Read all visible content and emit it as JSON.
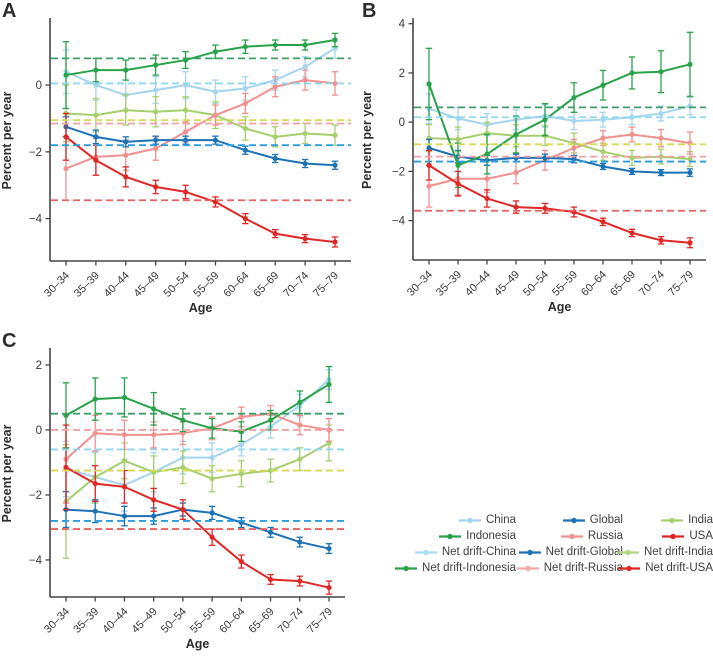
{
  "figure_name": "Percent per year by age for six populations with net drift reference lines",
  "chart_data": [
    {
      "type": "line",
      "panel_label": "A",
      "xlabel": "Age",
      "ylabel": "Percent per year",
      "categories": [
        "30–34",
        "35–39",
        "40–44",
        "45–49",
        "50–54",
        "55–59",
        "60–64",
        "65–69",
        "70–74",
        "75–79"
      ],
      "ylim": [
        -5.27,
        1.95
      ],
      "yticks": [
        0,
        -2,
        -4
      ],
      "yticklabels": [
        "0",
        "−2",
        "−4"
      ],
      "grid": false,
      "series": [
        {
          "name": "China",
          "color": "#a4d4ee",
          "values": [
            0.4,
            0.0,
            -0.3,
            -0.15,
            0.0,
            -0.2,
            -0.1,
            0.15,
            0.55,
            1.1
          ],
          "err": [
            0.65,
            0.45,
            0.45,
            0.4,
            0.4,
            0.35,
            0.35,
            0.3,
            0.3,
            0.3
          ]
        },
        {
          "name": "Global",
          "color": "#1d72b6",
          "values": [
            -1.25,
            -1.55,
            -1.7,
            -1.65,
            -1.65,
            -1.65,
            -1.95,
            -2.2,
            -2.35,
            -2.4
          ],
          "err": [
            0.3,
            0.2,
            0.15,
            0.12,
            0.12,
            0.12,
            0.12,
            0.12,
            0.12,
            0.12
          ]
        },
        {
          "name": "India",
          "color": "#a6cf6e",
          "values": [
            -0.85,
            -0.9,
            -0.75,
            -0.8,
            -0.75,
            -0.9,
            -1.3,
            -1.55,
            -1.45,
            -1.5
          ],
          "err": [
            0.85,
            0.5,
            0.45,
            0.45,
            0.4,
            0.4,
            0.35,
            0.3,
            0.3,
            0.3
          ]
        },
        {
          "name": "Indonesia",
          "color": "#28a349",
          "values": [
            0.3,
            0.45,
            0.45,
            0.6,
            0.75,
            1.0,
            1.15,
            1.2,
            1.2,
            1.35
          ],
          "err": [
            1.0,
            0.35,
            0.3,
            0.3,
            0.25,
            0.2,
            0.2,
            0.15,
            0.15,
            0.2
          ]
        },
        {
          "name": "Russia",
          "color": "#f0908f",
          "values": [
            -2.5,
            -2.15,
            -2.1,
            -1.9,
            -1.4,
            -0.9,
            -0.55,
            -0.05,
            0.15,
            0.05
          ],
          "err": [
            0.95,
            0.55,
            0.45,
            0.35,
            0.3,
            0.3,
            0.3,
            0.3,
            0.3,
            0.35
          ]
        },
        {
          "name": "USA",
          "color": "#e12726",
          "values": [
            -1.55,
            -2.25,
            -2.75,
            -3.05,
            -3.2,
            -3.5,
            -4.0,
            -4.45,
            -4.6,
            -4.7
          ],
          "err": [
            0.7,
            0.45,
            0.3,
            0.2,
            0.2,
            0.15,
            0.15,
            0.12,
            0.12,
            0.15
          ]
        }
      ],
      "net_drift": [
        {
          "name": "Net drift-China",
          "color": "#90d8f2",
          "value": 0.05
        },
        {
          "name": "Net drift-Global",
          "color": "#2d9de2",
          "value": -1.8
        },
        {
          "name": "Net drift-India",
          "color": "#d6da55",
          "value": -1.05
        },
        {
          "name": "Net drift-Indonesia",
          "color": "#3d9f63",
          "value": 0.8
        },
        {
          "name": "Net drift-Russia",
          "color": "#f2a2a6",
          "value": -1.15
        },
        {
          "name": "Net drift-USA",
          "color": "#e8605f",
          "value": -3.45
        }
      ]
    },
    {
      "type": "line",
      "panel_label": "B",
      "xlabel": "Age",
      "ylabel": "Percent per year",
      "categories": [
        "30–34",
        "35–39",
        "40–44",
        "45–49",
        "50–54",
        "55–59",
        "60–64",
        "65–69",
        "70–74",
        "75–79"
      ],
      "ylim": [
        -5.6,
        4.15
      ],
      "yticks": [
        4,
        2,
        0,
        -2,
        -4
      ],
      "yticklabels": [
        "4",
        "2",
        "0",
        "−2",
        "−4"
      ],
      "grid": false,
      "series": [
        {
          "name": "China",
          "color": "#a4d4ee",
          "values": [
            0.55,
            0.15,
            -0.1,
            0.1,
            0.25,
            0.05,
            0.1,
            0.2,
            0.35,
            0.65
          ],
          "err": [
            0.6,
            0.45,
            0.45,
            0.4,
            0.45,
            0.35,
            0.3,
            0.3,
            0.3,
            0.35
          ]
        },
        {
          "name": "Global",
          "color": "#1d72b6",
          "values": [
            -1.05,
            -1.4,
            -1.55,
            -1.45,
            -1.45,
            -1.5,
            -1.8,
            -2.0,
            -2.05,
            -2.05
          ],
          "err": [
            0.35,
            0.25,
            0.2,
            0.15,
            0.15,
            0.15,
            0.12,
            0.12,
            0.12,
            0.15
          ]
        },
        {
          "name": "India",
          "color": "#a6cf6e",
          "values": [
            -0.65,
            -0.7,
            -0.45,
            -0.55,
            -0.55,
            -0.85,
            -1.2,
            -1.45,
            -1.4,
            -1.5
          ],
          "err": [
            0.55,
            0.5,
            0.45,
            0.45,
            0.4,
            0.4,
            0.35,
            0.3,
            0.3,
            0.3
          ]
        },
        {
          "name": "Indonesia",
          "color": "#28a349",
          "values": [
            1.55,
            -1.75,
            -1.3,
            -0.5,
            0.1,
            1.0,
            1.5,
            2.0,
            2.05,
            2.35
          ],
          "err": [
            1.45,
            0.9,
            0.8,
            0.75,
            0.65,
            0.6,
            0.6,
            0.65,
            0.85,
            1.3
          ]
        },
        {
          "name": "Russia",
          "color": "#f0908f",
          "values": [
            -2.6,
            -2.3,
            -2.3,
            -2.05,
            -1.55,
            -1.05,
            -0.65,
            -0.5,
            -0.65,
            -0.85
          ],
          "err": [
            0.85,
            0.65,
            0.55,
            0.45,
            0.4,
            0.35,
            0.3,
            0.3,
            0.35,
            0.45
          ]
        },
        {
          "name": "USA",
          "color": "#e12726",
          "values": [
            -1.75,
            -2.5,
            -3.1,
            -3.45,
            -3.5,
            -3.65,
            -4.05,
            -4.5,
            -4.8,
            -4.9
          ],
          "err": [
            0.6,
            0.5,
            0.35,
            0.25,
            0.2,
            0.2,
            0.15,
            0.15,
            0.15,
            0.2
          ]
        }
      ],
      "net_drift": [
        {
          "name": "Net drift-China",
          "color": "#90d8f2",
          "value": 0.2
        },
        {
          "name": "Net drift-Global",
          "color": "#2d9de2",
          "value": -1.6
        },
        {
          "name": "Net drift-India",
          "color": "#d6da55",
          "value": -0.9
        },
        {
          "name": "Net drift-Indonesia",
          "color": "#3d9f63",
          "value": 0.6
        },
        {
          "name": "Net drift-Russia",
          "color": "#f2a2a6",
          "value": -1.4
        },
        {
          "name": "Net drift-USA",
          "color": "#e8605f",
          "value": -3.6
        }
      ]
    },
    {
      "type": "line",
      "panel_label": "C",
      "xlabel": "Age",
      "ylabel": "Percent per year",
      "categories": [
        "30–34",
        "35–39",
        "40–44",
        "45–49",
        "50–54",
        "55–59",
        "60–64",
        "65–69",
        "70–74",
        "75–79"
      ],
      "ylim": [
        -5.14,
        2.46
      ],
      "yticks": [
        2,
        0,
        -2,
        -4
      ],
      "yticklabels": [
        "2",
        "0",
        "−2",
        "−4"
      ],
      "grid": false,
      "series": [
        {
          "name": "China",
          "color": "#a4d4ee",
          "values": [
            -1.2,
            -1.45,
            -1.7,
            -1.3,
            -0.85,
            -0.85,
            -0.45,
            0.1,
            0.75,
            1.55
          ],
          "err": [
            0.85,
            0.75,
            0.8,
            0.6,
            0.5,
            0.45,
            0.35,
            0.35,
            0.35,
            0.3
          ]
        },
        {
          "name": "Global",
          "color": "#1d72b6",
          "values": [
            -2.45,
            -2.5,
            -2.65,
            -2.65,
            -2.45,
            -2.55,
            -2.85,
            -3.15,
            -3.45,
            -3.65
          ],
          "err": [
            0.55,
            0.35,
            0.3,
            0.25,
            0.2,
            0.2,
            0.15,
            0.15,
            0.15,
            0.15
          ]
        },
        {
          "name": "India",
          "color": "#a6cf6e",
          "values": [
            -2.2,
            -1.45,
            -0.95,
            -1.3,
            -1.15,
            -1.5,
            -1.35,
            -1.25,
            -0.9,
            -0.4
          ],
          "err": [
            1.75,
            0.8,
            0.55,
            0.5,
            0.5,
            0.4,
            0.4,
            0.35,
            0.35,
            0.55
          ]
        },
        {
          "name": "Indonesia",
          "color": "#28a349",
          "values": [
            0.45,
            0.95,
            1.0,
            0.65,
            0.3,
            0.05,
            -0.05,
            0.3,
            0.85,
            1.4
          ],
          "err": [
            1.0,
            0.65,
            0.6,
            0.5,
            0.35,
            0.3,
            0.3,
            0.3,
            0.35,
            0.55
          ]
        },
        {
          "name": "Russia",
          "color": "#f0908f",
          "values": [
            -0.9,
            -0.1,
            -0.15,
            -0.15,
            -0.1,
            0.05,
            0.4,
            0.5,
            0.15,
            0.0
          ],
          "err": [
            1.35,
            0.55,
            0.45,
            0.4,
            0.35,
            0.35,
            0.3,
            0.25,
            0.3,
            0.35
          ]
        },
        {
          "name": "USA",
          "color": "#e12726",
          "values": [
            -1.15,
            -1.65,
            -1.75,
            -2.15,
            -2.45,
            -3.3,
            -4.05,
            -4.6,
            -4.65,
            -4.85
          ],
          "err": [
            1.3,
            0.55,
            0.5,
            0.35,
            0.3,
            0.25,
            0.2,
            0.15,
            0.15,
            0.2
          ]
        }
      ],
      "net_drift": [
        {
          "name": "Net drift-China",
          "color": "#90d8f2",
          "value": -0.6
        },
        {
          "name": "Net drift-Global",
          "color": "#2d9de2",
          "value": -2.8
        },
        {
          "name": "Net drift-India",
          "color": "#d6da55",
          "value": -1.25
        },
        {
          "name": "Net drift-Indonesia",
          "color": "#3d9f63",
          "value": 0.5
        },
        {
          "name": "Net drift-Russia",
          "color": "#f2a2a6",
          "value": 0.0
        },
        {
          "name": "Net drift-USA",
          "color": "#e8605f",
          "value": -3.05
        }
      ]
    }
  ],
  "legend": {
    "rows": [
      [
        {
          "label": "China",
          "color": "#a4d4ee"
        },
        {
          "label": "Global",
          "color": "#1d72b6"
        },
        {
          "label": "India",
          "color": "#a6cf6e"
        }
      ],
      [
        {
          "label": "Indonesia",
          "color": "#28a349"
        },
        {
          "label": "Russia",
          "color": "#f0908f"
        },
        {
          "label": "USA",
          "color": "#e12726"
        }
      ],
      [
        {
          "label": "Net drift-China",
          "color": "#aadcf2"
        },
        {
          "label": "Net drift-Global",
          "color": "#1d72b6"
        },
        {
          "label": "Net drift-India",
          "color": "#b1d685"
        }
      ],
      [
        {
          "label": "Net drift-Indonesia",
          "color": "#28a349"
        },
        {
          "label": "Net drift-Russia",
          "color": "#f4a9a8"
        },
        {
          "label": "Net drift-USA",
          "color": "#e12726"
        }
      ]
    ]
  }
}
